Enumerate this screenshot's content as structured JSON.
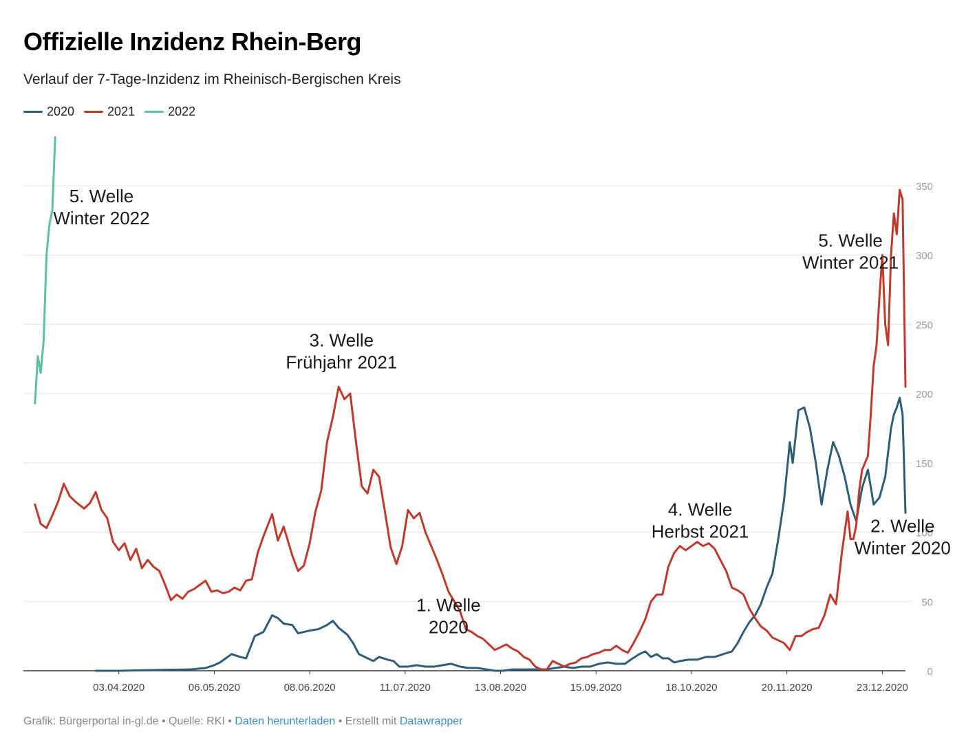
{
  "header": {
    "title": "Offizielle Inzidenz Rhein-Berg",
    "subtitle": "Verlauf der 7-Tage-Inzidenz im Rheinisch-Bergischen Kreis"
  },
  "footer": {
    "prefix": "Grafik: Bürgerportal in-gl.de • Quelle: RKI •",
    "download_link": "Daten herunterladen",
    "middle": "• Erstellt mit",
    "datawrapper_link": "Datawrapper"
  },
  "chart_data": {
    "type": "line",
    "title": "Offizielle Inzidenz Rhein-Berg",
    "subtitle": "Verlauf der 7-Tage-Inzidenz im Rheinisch-Bergischen Kreis",
    "x_range": [
      "2020-03-01",
      "2020-12-31"
    ],
    "ylim": [
      0,
      350
    ],
    "y_ticks": [
      0,
      50,
      100,
      150,
      200,
      250,
      300,
      350
    ],
    "x_ticks": [
      "03.04.2020",
      "06.05.2020",
      "08.06.2020",
      "11.07.2020",
      "13.08.2020",
      "15.09.2020",
      "18.10.2020",
      "20.11.2020",
      "23.12.2020"
    ],
    "legend_position": "top-left",
    "grid": true,
    "series": [
      {
        "name": "2020",
        "color": "#2e5d78",
        "points": [
          [
            "2020-03-26",
            0
          ],
          [
            "2020-04-03",
            0
          ],
          [
            "2020-04-28",
            1
          ],
          [
            "2020-05-03",
            2
          ],
          [
            "2020-05-06",
            4
          ],
          [
            "2020-05-08",
            6
          ],
          [
            "2020-05-10",
            9
          ],
          [
            "2020-05-12",
            12
          ],
          [
            "2020-05-15",
            10
          ],
          [
            "2020-05-17",
            9
          ],
          [
            "2020-05-20",
            25
          ],
          [
            "2020-05-23",
            28
          ],
          [
            "2020-05-26",
            40
          ],
          [
            "2020-05-28",
            38
          ],
          [
            "2020-05-30",
            34
          ],
          [
            "2020-06-02",
            33
          ],
          [
            "2020-06-04",
            27
          ],
          [
            "2020-06-06",
            28
          ],
          [
            "2020-06-08",
            29
          ],
          [
            "2020-06-11",
            30
          ],
          [
            "2020-06-14",
            33
          ],
          [
            "2020-06-16",
            36
          ],
          [
            "2020-06-18",
            31
          ],
          [
            "2020-06-21",
            26
          ],
          [
            "2020-06-23",
            20
          ],
          [
            "2020-06-25",
            12
          ],
          [
            "2020-06-28",
            9
          ],
          [
            "2020-06-30",
            7
          ],
          [
            "2020-07-02",
            10
          ],
          [
            "2020-07-05",
            8
          ],
          [
            "2020-07-07",
            7
          ],
          [
            "2020-07-09",
            3
          ],
          [
            "2020-07-12",
            3
          ],
          [
            "2020-07-15",
            4
          ],
          [
            "2020-07-18",
            3
          ],
          [
            "2020-07-21",
            3
          ],
          [
            "2020-07-24",
            4
          ],
          [
            "2020-07-27",
            5
          ],
          [
            "2020-07-30",
            3
          ],
          [
            "2020-08-02",
            2
          ],
          [
            "2020-08-05",
            2
          ],
          [
            "2020-08-08",
            1
          ],
          [
            "2020-08-11",
            0
          ],
          [
            "2020-08-14",
            0
          ],
          [
            "2020-08-17",
            1
          ],
          [
            "2020-08-20",
            1
          ],
          [
            "2020-08-23",
            1
          ],
          [
            "2020-08-26",
            1
          ],
          [
            "2020-08-29",
            1
          ],
          [
            "2020-09-01",
            2
          ],
          [
            "2020-09-04",
            3
          ],
          [
            "2020-09-07",
            2
          ],
          [
            "2020-09-10",
            3
          ],
          [
            "2020-09-13",
            3
          ],
          [
            "2020-09-16",
            5
          ],
          [
            "2020-09-19",
            6
          ],
          [
            "2020-09-22",
            5
          ],
          [
            "2020-09-25",
            5
          ],
          [
            "2020-09-27",
            8
          ],
          [
            "2020-09-30",
            12
          ],
          [
            "2020-10-02",
            14
          ],
          [
            "2020-10-04",
            10
          ],
          [
            "2020-10-06",
            12
          ],
          [
            "2020-10-08",
            9
          ],
          [
            "2020-10-10",
            9
          ],
          [
            "2020-10-12",
            6
          ],
          [
            "2020-10-14",
            7
          ],
          [
            "2020-10-17",
            8
          ],
          [
            "2020-10-20",
            8
          ],
          [
            "2020-10-23",
            10
          ],
          [
            "2020-10-26",
            10
          ],
          [
            "2020-10-29",
            12
          ],
          [
            "2020-11-01",
            14
          ],
          [
            "2020-11-03",
            20
          ],
          [
            "2020-11-05",
            28
          ],
          [
            "2020-11-07",
            35
          ],
          [
            "2020-11-09",
            40
          ],
          [
            "2020-11-11",
            48
          ],
          [
            "2020-11-13",
            60
          ],
          [
            "2020-11-15",
            70
          ],
          [
            "2020-11-17",
            95
          ],
          [
            "2020-11-19",
            123
          ],
          [
            "2020-11-21",
            165
          ],
          [
            "2020-11-22",
            150
          ],
          [
            "2020-11-24",
            188
          ],
          [
            "2020-11-26",
            190
          ],
          [
            "2020-11-28",
            175
          ],
          [
            "2020-11-30",
            150
          ],
          [
            "2020-12-02",
            120
          ],
          [
            "2020-12-04",
            145
          ],
          [
            "2020-12-06",
            165
          ],
          [
            "2020-12-08",
            155
          ],
          [
            "2020-12-10",
            140
          ],
          [
            "2020-12-12",
            120
          ],
          [
            "2020-12-14",
            108
          ],
          [
            "2020-12-16",
            132
          ],
          [
            "2020-12-18",
            145
          ],
          [
            "2020-12-20",
            120
          ],
          [
            "2020-12-22",
            125
          ],
          [
            "2020-12-24",
            140
          ],
          [
            "2020-12-26",
            175
          ],
          [
            "2020-12-27",
            185
          ],
          [
            "2020-12-28",
            190
          ],
          [
            "2020-12-29",
            197
          ],
          [
            "2020-12-30",
            185
          ],
          [
            "2020-12-31",
            114
          ]
        ]
      },
      {
        "name": "2021",
        "color": "#c0392b",
        "points": [
          [
            "2020-03-05",
            120
          ],
          [
            "2020-03-07",
            106
          ],
          [
            "2020-03-09",
            103
          ],
          [
            "2020-03-11",
            112
          ],
          [
            "2020-03-13",
            122
          ],
          [
            "2020-03-15",
            135
          ],
          [
            "2020-03-17",
            126
          ],
          [
            "2020-03-19",
            122
          ],
          [
            "2020-03-22",
            117
          ],
          [
            "2020-03-24",
            121
          ],
          [
            "2020-03-26",
            129
          ],
          [
            "2020-03-28",
            116
          ],
          [
            "2020-03-30",
            110
          ],
          [
            "2020-04-01",
            93
          ],
          [
            "2020-04-03",
            87
          ],
          [
            "2020-04-05",
            92
          ],
          [
            "2020-04-07",
            80
          ],
          [
            "2020-04-09",
            88
          ],
          [
            "2020-04-11",
            74
          ],
          [
            "2020-04-13",
            80
          ],
          [
            "2020-04-15",
            75
          ],
          [
            "2020-04-17",
            72
          ],
          [
            "2020-04-19",
            62
          ],
          [
            "2020-04-21",
            51
          ],
          [
            "2020-04-23",
            55
          ],
          [
            "2020-04-25",
            52
          ],
          [
            "2020-04-27",
            57
          ],
          [
            "2020-04-29",
            59
          ],
          [
            "2020-05-01",
            62
          ],
          [
            "2020-05-03",
            65
          ],
          [
            "2020-05-05",
            57
          ],
          [
            "2020-05-07",
            58
          ],
          [
            "2020-05-09",
            56
          ],
          [
            "2020-05-11",
            57
          ],
          [
            "2020-05-13",
            60
          ],
          [
            "2020-05-15",
            58
          ],
          [
            "2020-05-17",
            65
          ],
          [
            "2020-05-19",
            66
          ],
          [
            "2020-05-21",
            85
          ],
          [
            "2020-05-23",
            97
          ],
          [
            "2020-05-26",
            113
          ],
          [
            "2020-05-28",
            94
          ],
          [
            "2020-05-30",
            104
          ],
          [
            "2020-06-02",
            83
          ],
          [
            "2020-06-04",
            72
          ],
          [
            "2020-06-06",
            76
          ],
          [
            "2020-06-08",
            92
          ],
          [
            "2020-06-10",
            115
          ],
          [
            "2020-06-12",
            130
          ],
          [
            "2020-06-14",
            165
          ],
          [
            "2020-06-16",
            183
          ],
          [
            "2020-06-18",
            205
          ],
          [
            "2020-06-20",
            196
          ],
          [
            "2020-06-22",
            200
          ],
          [
            "2020-06-24",
            165
          ],
          [
            "2020-06-26",
            133
          ],
          [
            "2020-06-28",
            128
          ],
          [
            "2020-06-30",
            145
          ],
          [
            "2020-07-02",
            140
          ],
          [
            "2020-07-04",
            115
          ],
          [
            "2020-07-06",
            89
          ],
          [
            "2020-07-08",
            77
          ],
          [
            "2020-07-10",
            90
          ],
          [
            "2020-07-12",
            116
          ],
          [
            "2020-07-14",
            110
          ],
          [
            "2020-07-16",
            114
          ],
          [
            "2020-07-18",
            100
          ],
          [
            "2020-07-20",
            90
          ],
          [
            "2020-07-22",
            80
          ],
          [
            "2020-07-24",
            69
          ],
          [
            "2020-07-26",
            57
          ],
          [
            "2020-07-28",
            50
          ],
          [
            "2020-07-30",
            43
          ],
          [
            "2020-08-01",
            30
          ],
          [
            "2020-08-03",
            28
          ],
          [
            "2020-08-05",
            25
          ],
          [
            "2020-08-07",
            23
          ],
          [
            "2020-08-09",
            19
          ],
          [
            "2020-08-11",
            15
          ],
          [
            "2020-08-13",
            17
          ],
          [
            "2020-08-15",
            19
          ],
          [
            "2020-08-17",
            16
          ],
          [
            "2020-08-19",
            14
          ],
          [
            "2020-08-21",
            10
          ],
          [
            "2020-08-23",
            8
          ],
          [
            "2020-08-25",
            3
          ],
          [
            "2020-08-27",
            1
          ],
          [
            "2020-08-29",
            1
          ],
          [
            "2020-08-31",
            7
          ],
          [
            "2020-09-02",
            5
          ],
          [
            "2020-09-04",
            3
          ],
          [
            "2020-09-06",
            5
          ],
          [
            "2020-09-08",
            6
          ],
          [
            "2020-09-10",
            9
          ],
          [
            "2020-09-12",
            10
          ],
          [
            "2020-09-14",
            12
          ],
          [
            "2020-09-16",
            13
          ],
          [
            "2020-09-18",
            15
          ],
          [
            "2020-09-20",
            15
          ],
          [
            "2020-09-22",
            18
          ],
          [
            "2020-09-24",
            15
          ],
          [
            "2020-09-26",
            13
          ],
          [
            "2020-09-28",
            20
          ],
          [
            "2020-09-30",
            28
          ],
          [
            "2020-10-02",
            37
          ],
          [
            "2020-10-04",
            50
          ],
          [
            "2020-10-06",
            55
          ],
          [
            "2020-10-08",
            55
          ],
          [
            "2020-10-10",
            75
          ],
          [
            "2020-10-12",
            85
          ],
          [
            "2020-10-14",
            90
          ],
          [
            "2020-10-16",
            87
          ],
          [
            "2020-10-18",
            90
          ],
          [
            "2020-10-20",
            93
          ],
          [
            "2020-10-22",
            90
          ],
          [
            "2020-10-24",
            92
          ],
          [
            "2020-10-26",
            88
          ],
          [
            "2020-10-28",
            80
          ],
          [
            "2020-10-30",
            72
          ],
          [
            "2020-11-01",
            60
          ],
          [
            "2020-11-03",
            58
          ],
          [
            "2020-11-05",
            55
          ],
          [
            "2020-11-07",
            45
          ],
          [
            "2020-11-09",
            38
          ],
          [
            "2020-11-11",
            32
          ],
          [
            "2020-11-13",
            29
          ],
          [
            "2020-11-15",
            24
          ],
          [
            "2020-11-17",
            22
          ],
          [
            "2020-11-19",
            20
          ],
          [
            "2020-11-21",
            15
          ],
          [
            "2020-11-23",
            25
          ],
          [
            "2020-11-25",
            25
          ],
          [
            "2020-11-27",
            28
          ],
          [
            "2020-11-29",
            30
          ],
          [
            "2020-12-01",
            31
          ],
          [
            "2020-12-03",
            40
          ],
          [
            "2020-12-05",
            55
          ],
          [
            "2020-12-07",
            48
          ],
          [
            "2020-12-09",
            85
          ],
          [
            "2020-12-11",
            115
          ],
          [
            "2020-12-12",
            95
          ],
          [
            "2020-12-13",
            95
          ],
          [
            "2020-12-14",
            105
          ],
          [
            "2020-12-15",
            130
          ],
          [
            "2020-12-16",
            145
          ],
          [
            "2020-12-18",
            155
          ],
          [
            "2020-12-19",
            185
          ],
          [
            "2020-12-20",
            220
          ],
          [
            "2020-12-21",
            235
          ],
          [
            "2020-12-22",
            270
          ],
          [
            "2020-12-23",
            300
          ],
          [
            "2020-12-24",
            250
          ],
          [
            "2020-12-25",
            235
          ],
          [
            "2020-12-26",
            300
          ],
          [
            "2020-12-27",
            330
          ],
          [
            "2020-12-28",
            315
          ],
          [
            "2020-12-29",
            347
          ],
          [
            "2020-12-30",
            340
          ],
          [
            "2020-12-31",
            205
          ]
        ]
      },
      {
        "name": "2022",
        "color": "#5fbfa3",
        "points": [
          [
            "2020-03-05",
            193
          ],
          [
            "2020-03-06",
            227
          ],
          [
            "2020-03-07",
            215
          ],
          [
            "2020-03-08",
            238
          ],
          [
            "2020-03-09",
            300
          ],
          [
            "2020-03-10",
            322
          ],
          [
            "2020-03-11",
            332
          ],
          [
            "2020-03-12",
            385
          ]
        ]
      }
    ],
    "annotations": [
      {
        "lines": [
          "5. Welle",
          "Winter 2022"
        ]
      },
      {
        "lines": [
          "3. Welle",
          "Frühjahr 2021"
        ]
      },
      {
        "lines": [
          "1. Welle",
          "2020"
        ]
      },
      {
        "lines": [
          "4. Welle",
          "Herbst 2021"
        ]
      },
      {
        "lines": [
          "5. Welle",
          "Winter 2021"
        ]
      },
      {
        "lines": [
          "2. Welle",
          "Winter 2020"
        ]
      }
    ]
  }
}
